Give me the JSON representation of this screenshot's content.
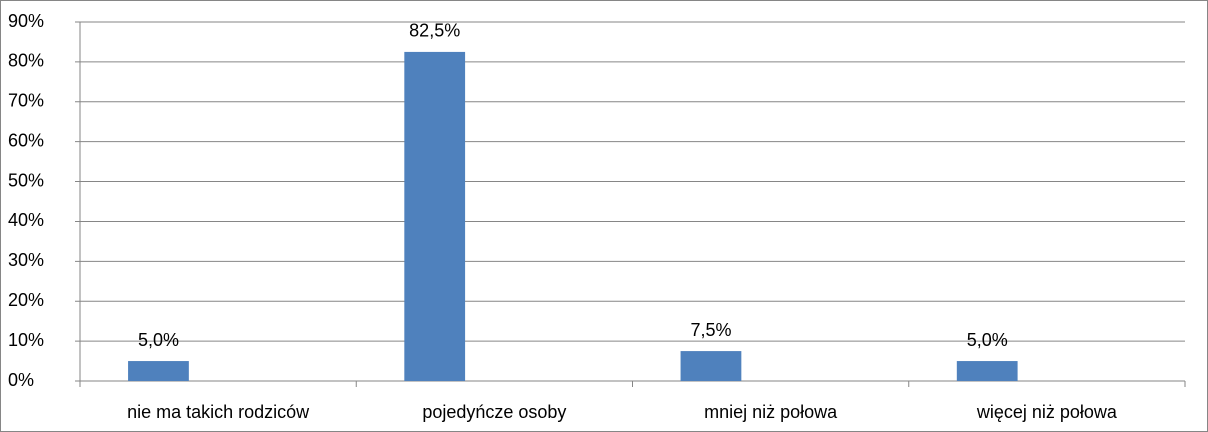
{
  "chart_data": {
    "type": "bar",
    "categories": [
      "nie ma takich rodziców",
      "pojedyńcze osoby",
      "mniej niż połowa",
      "więcej niż połowa"
    ],
    "values": [
      5.0,
      82.5,
      7.5,
      5.0
    ],
    "value_labels": [
      "5,0%",
      "82,5%",
      "7,5%",
      "5,0%"
    ],
    "color": "#4f81bd",
    "ylim": [
      0,
      90
    ],
    "yticks": [
      {
        "value": 0,
        "label": "0%"
      },
      {
        "value": 10,
        "label": "10%"
      },
      {
        "value": 20,
        "label": "20%"
      },
      {
        "value": 30,
        "label": "30%"
      },
      {
        "value": 40,
        "label": "40%"
      },
      {
        "value": 50,
        "label": "50%"
      },
      {
        "value": 60,
        "label": "60%"
      },
      {
        "value": 70,
        "label": "70%"
      },
      {
        "value": 80,
        "label": "80%"
      },
      {
        "value": 90,
        "label": "90%"
      }
    ],
    "grid": true
  }
}
